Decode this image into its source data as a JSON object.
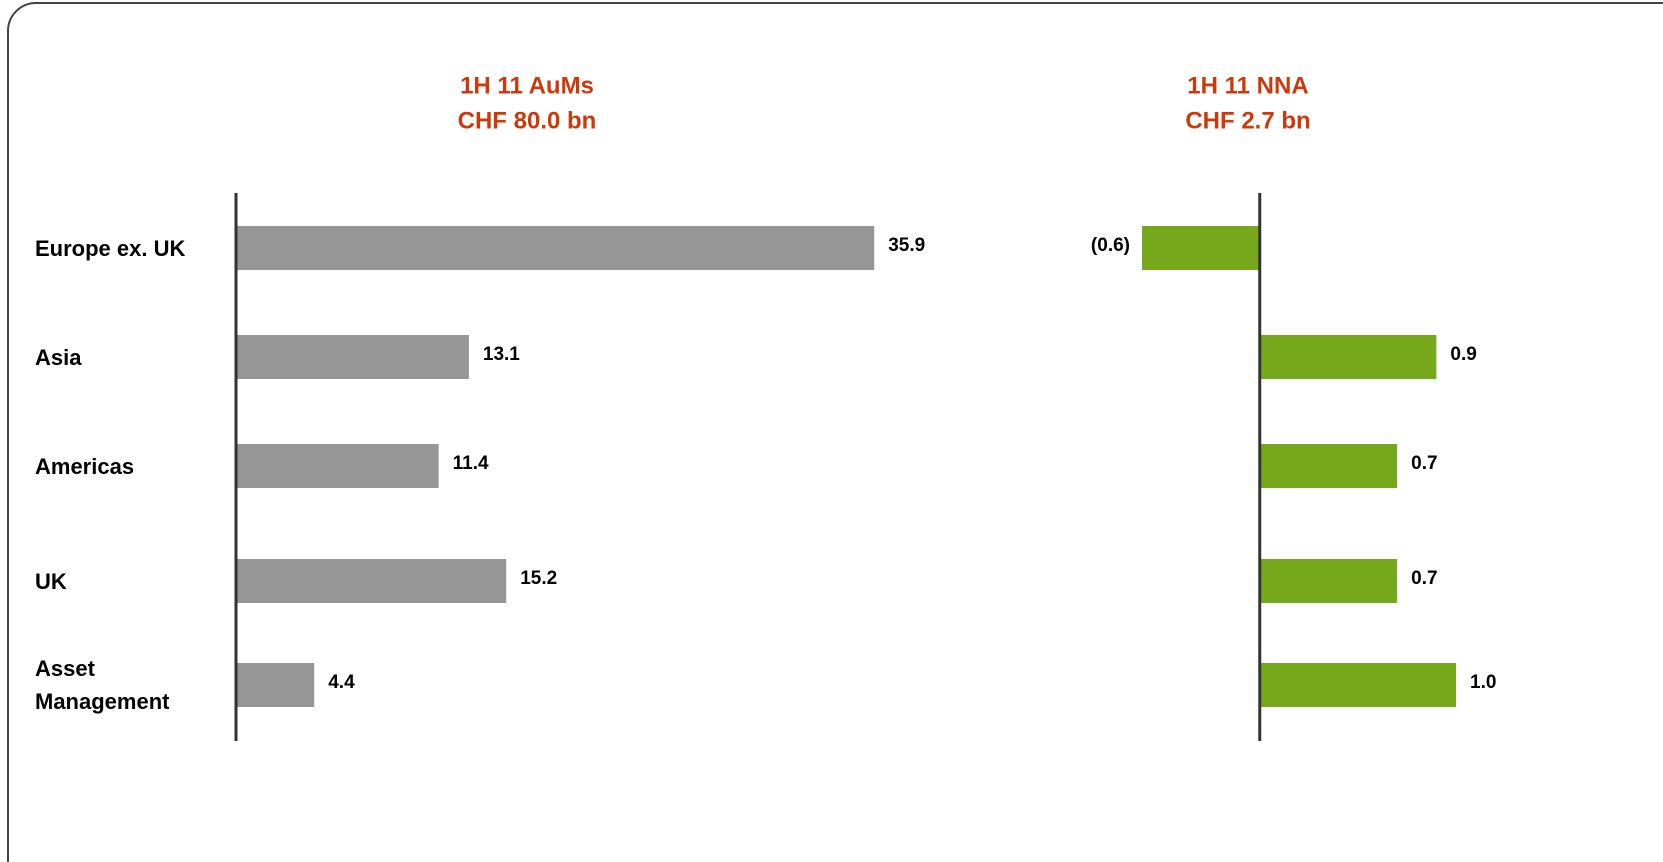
{
  "chart_data": [
    {
      "type": "hbar",
      "title": "1H 11 AuMs",
      "subtitle": "CHF 80.0 bn",
      "categories": [
        "Europe ex. UK",
        "Asia",
        "Americas",
        "UK",
        "Asset Management"
      ],
      "values": [
        35.9,
        13.1,
        11.4,
        15.2,
        4.4
      ],
      "value_labels": [
        "35.9",
        "13.1",
        "11.4",
        "15.2",
        "4.4"
      ],
      "color": "#969696",
      "xlim": [
        0,
        36
      ]
    },
    {
      "type": "hbar",
      "title": "1H 11 NNA",
      "subtitle": "CHF 2.7 bn",
      "values": [
        -0.6,
        0.9,
        0.7,
        0.7,
        1.0
      ],
      "value_labels": [
        "(0.6)",
        "0.9",
        "0.7",
        "0.7",
        "1.0"
      ],
      "color": "#76a81c",
      "xlim": [
        -0.6,
        1.0
      ]
    }
  ]
}
